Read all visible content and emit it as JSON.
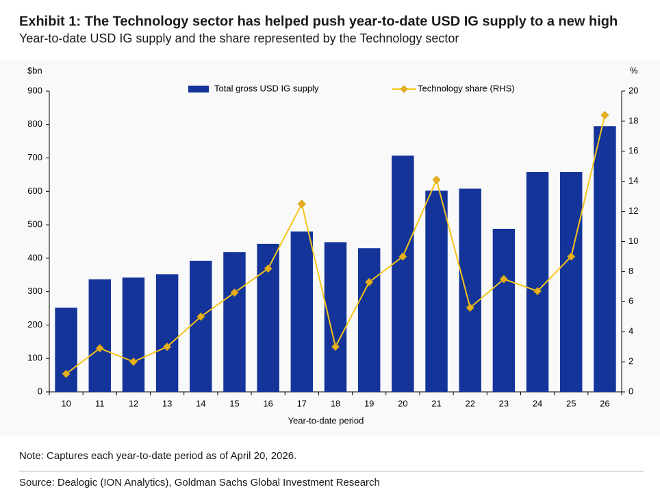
{
  "chart_data": {
    "type": "bar",
    "title": "Exhibit 1: The Technology sector has helped push year-to-date USD IG supply to a new high",
    "subtitle": "Year-to-date USD IG supply and the share represented by the Technology sector",
    "y_unit": "$bn",
    "y2_unit": "%",
    "x_label": "Year-to-date period",
    "note": "Note: Captures each year-to-date period as of April 20, 2026.",
    "source": "Source: Dealogic (ION Analytics), Goldman Sachs Global Investment Research",
    "categories": [
      "10",
      "11",
      "12",
      "13",
      "14",
      "15",
      "16",
      "17",
      "18",
      "19",
      "20",
      "21",
      "22",
      "23",
      "24",
      "25",
      "26"
    ],
    "series": [
      {
        "name": "Total gross USD IG supply",
        "type": "bar",
        "color": "#14349a",
        "values": [
          252,
          337,
          342,
          352,
          392,
          418,
          443,
          480,
          448,
          430,
          707,
          602,
          608,
          488,
          658,
          658,
          795
        ]
      },
      {
        "name": "Technology share (RHS)",
        "type": "line",
        "axis": "y2",
        "color": "#f5c518",
        "marker_color": "#e8b020",
        "values": [
          1.2,
          2.9,
          2.0,
          3.0,
          5.0,
          6.6,
          8.2,
          12.5,
          3.0,
          7.3,
          9.0,
          14.1,
          5.6,
          7.5,
          6.7,
          9.0,
          18.4
        ]
      }
    ],
    "ylim": [
      0,
      900
    ],
    "yticks": [
      0,
      100,
      200,
      300,
      400,
      500,
      600,
      700,
      800,
      900
    ],
    "y2lim": [
      0,
      20
    ],
    "y2ticks": [
      0,
      2,
      4,
      6,
      8,
      10,
      12,
      14,
      16,
      18,
      20
    ],
    "grid": false,
    "legend": "top"
  }
}
